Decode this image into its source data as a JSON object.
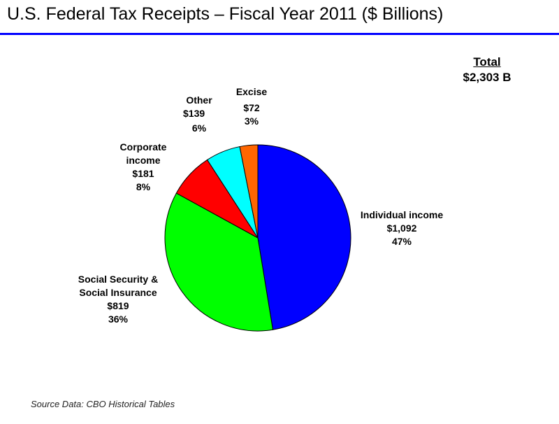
{
  "header": {
    "title": "U.S. Federal Tax Receipts – Fiscal Year 2011 ($ Billions)"
  },
  "total": {
    "label": "Total",
    "value": "$2,303 B"
  },
  "source": "Source Data: CBO Historical Tables",
  "colors": {
    "title_rule": "#0000ff",
    "individual_income": "#0000ff",
    "social_security": "#00ff00",
    "corporate_income": "#ff0000",
    "other": "#00ffff",
    "excise": "#ff6600"
  },
  "chart_data": {
    "type": "pie",
    "title": "U.S. Federal Tax Receipts – Fiscal Year 2011 ($ Billions)",
    "slices": [
      {
        "name": "Individual income",
        "value": 1092,
        "value_label": "$1,092",
        "percent_label": "47%",
        "color": "#0000ff"
      },
      {
        "name": "Social Security & Social Insurance",
        "value": 819,
        "value_label": "$819",
        "percent_label": "36%",
        "color": "#00ff00"
      },
      {
        "name": "Corporate income",
        "value": 181,
        "value_label": "$181",
        "percent_label": "8%",
        "color": "#ff0000"
      },
      {
        "name": "Other",
        "value": 139,
        "value_label": "$139",
        "percent_label": "6%",
        "color": "#00ffff"
      },
      {
        "name": "Excise",
        "value": 72,
        "value_label": "$72",
        "percent_label": "3%",
        "color": "#ff6600"
      }
    ],
    "start": "12 o'clock",
    "direction": "clockwise"
  },
  "labels": {
    "individual": {
      "line1": "Individual income",
      "line2": "$1,092",
      "line3": "47%"
    },
    "social": {
      "line1": "Social Security &",
      "line2": "Social Insurance",
      "line3": "$819",
      "line4": "36%"
    },
    "corporate": {
      "line1": "Corporate",
      "line2": "income",
      "line3": "$181",
      "line4": "8%"
    },
    "other": {
      "line1": "Other",
      "line2": "$139",
      "line3": "6%"
    },
    "excise": {
      "line1": "Excise",
      "line2": "$72",
      "line3": "3%"
    }
  }
}
